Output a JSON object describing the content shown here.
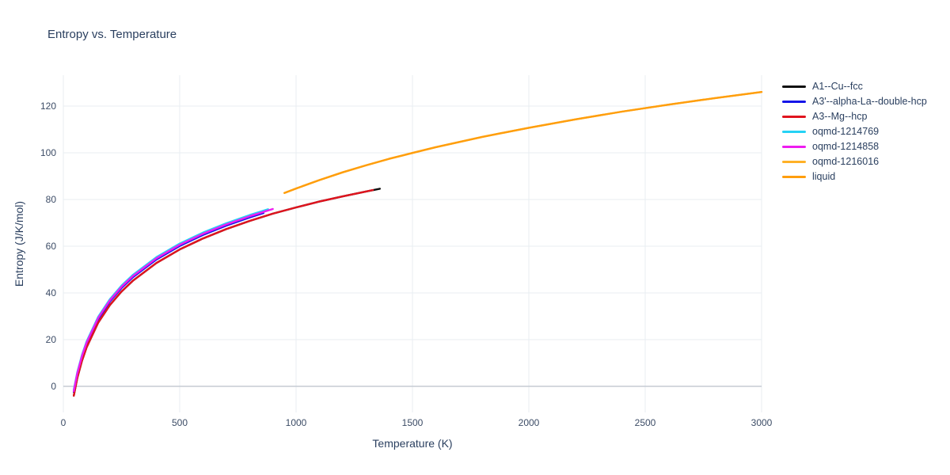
{
  "chart_data": {
    "type": "line",
    "title": "Entropy vs. Temperature",
    "xlabel": "Temperature (K)",
    "ylabel": "Entropy (J/K/mol)",
    "x_range": [
      0,
      3000
    ],
    "y_range": [
      -11.2,
      133.2
    ],
    "x_ticks": [
      0,
      500,
      1000,
      1500,
      2000,
      2500,
      3000
    ],
    "y_ticks": [
      0,
      20,
      40,
      60,
      80,
      100,
      120
    ],
    "grid": true,
    "zero_line_value": 0,
    "legend_position": "right-outside",
    "colors": {
      "grid": "#e9edf2",
      "zero_line": "#c6ccd4",
      "tick_text": "#3c4c66",
      "title_text": "#2a3f5f"
    },
    "series": [
      {
        "name": "A1--Cu--fcc",
        "color": "#101010",
        "x": [
          45,
          60,
          80,
          100,
          150,
          200,
          250,
          300,
          400,
          500,
          600,
          700,
          800,
          900,
          1000,
          1100,
          1200,
          1300,
          1360
        ],
        "y": [
          -4.0,
          3.5,
          10.9,
          16.7,
          27.3,
          34.8,
          40.6,
          45.3,
          52.8,
          58.6,
          63.3,
          67.3,
          70.8,
          73.9,
          76.6,
          79.1,
          81.3,
          83.4,
          84.6
        ]
      },
      {
        "name": "A3'--alpha-La--double-hcp",
        "color": "#1414e8",
        "x": [
          45,
          60,
          80,
          100,
          150,
          200,
          250,
          300,
          400,
          500,
          600,
          700,
          800,
          860
        ],
        "y": [
          -2.5,
          5.0,
          12.4,
          18.2,
          28.8,
          36.3,
          42.1,
          46.8,
          54.3,
          60.1,
          64.8,
          68.8,
          72.3,
          74.2
        ]
      },
      {
        "name": "A3--Mg--hcp",
        "color": "#e0141e",
        "x": [
          45,
          60,
          80,
          100,
          150,
          200,
          250,
          300,
          400,
          500,
          600,
          700,
          800,
          900,
          1000,
          1100,
          1200,
          1300,
          1330
        ],
        "y": [
          -4.0,
          3.5,
          10.9,
          16.7,
          27.3,
          34.8,
          40.6,
          45.3,
          52.8,
          58.6,
          63.3,
          67.3,
          70.8,
          73.9,
          76.6,
          79.1,
          81.3,
          83.4,
          84.0
        ]
      },
      {
        "name": "oqmd-1214769",
        "color": "#25d2f5",
        "x": [
          45,
          60,
          80,
          100,
          150,
          200,
          250,
          300,
          400,
          500,
          600,
          700,
          800,
          880
        ],
        "y": [
          -1.5,
          6.0,
          13.4,
          19.2,
          29.8,
          37.3,
          43.1,
          47.8,
          55.3,
          61.1,
          65.8,
          69.8,
          73.3,
          75.8
        ]
      },
      {
        "name": "oqmd-1214858",
        "color": "#ee1cf0",
        "x": [
          45,
          60,
          80,
          100,
          150,
          200,
          250,
          300,
          400,
          500,
          600,
          700,
          800,
          900
        ],
        "y": [
          -2.0,
          5.5,
          12.9,
          18.7,
          29.3,
          36.8,
          42.6,
          47.3,
          54.8,
          60.6,
          65.3,
          69.3,
          72.8,
          75.9
        ]
      },
      {
        "name": "oqmd-1216016",
        "color": "#ffb127",
        "x": [
          950,
          1000,
          1100,
          1200,
          1300,
          1400,
          1500,
          1600,
          1800,
          2000,
          2200,
          2400,
          2600,
          2800,
          3000
        ],
        "y": [
          82.8,
          84.7,
          88.3,
          91.6,
          94.6,
          97.4,
          99.9,
          102.4,
          106.8,
          110.7,
          114.3,
          117.6,
          120.6,
          123.4,
          126.0
        ]
      },
      {
        "name": "liquid",
        "color": "#ff9e0d",
        "x": [
          950,
          1000,
          1100,
          1200,
          1300,
          1400,
          1500,
          1600,
          1800,
          2000,
          2200,
          2400,
          2600,
          2800,
          3000
        ],
        "y": [
          82.8,
          84.7,
          88.3,
          91.6,
          94.6,
          97.4,
          99.9,
          102.4,
          106.8,
          110.7,
          114.3,
          117.6,
          120.6,
          123.4,
          126.0
        ]
      }
    ]
  }
}
